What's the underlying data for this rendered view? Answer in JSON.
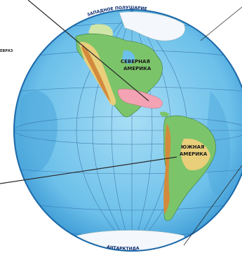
{
  "map": {
    "top_arc_label": "ЗАПАДНОЕ ПОЛУШАРИЕ",
    "bottom_arc_label": "АНТАРКТИДА",
    "left_label": "ЕВРАЗ",
    "continents": {
      "north_america_line1": "СЕВЕРНАЯ",
      "north_america_line2": "АМЕРИКА",
      "south_america_line1": "ЮЖНАЯ",
      "south_america_line2": "АМЕРИКА"
    },
    "colors": {
      "ocean_light": "#8fd3f2",
      "ocean_dark": "#2f8fce",
      "lowland": "#7cc46a",
      "upland": "#e9cf7a",
      "mountain": "#d38a3c",
      "ice": "#f4f7fb",
      "highlight": "#f4a3b4"
    }
  }
}
